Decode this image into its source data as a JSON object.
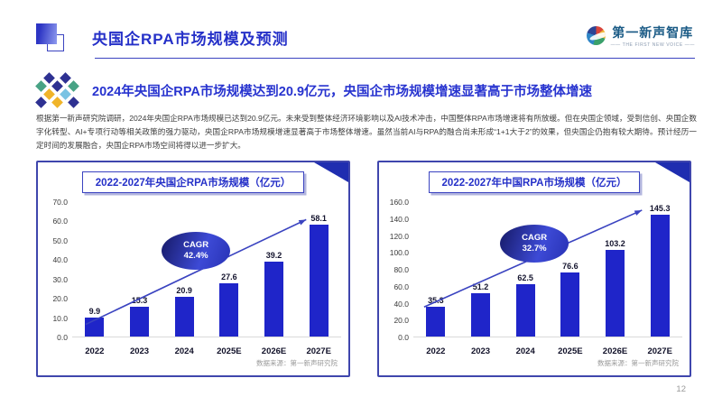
{
  "header": {
    "title": "央国企RPA市场规模及预测",
    "logo_text": "第一新声智库",
    "logo_tagline": "—— THE FIRST NEW VOICE ——"
  },
  "highlight": {
    "text": "2024年央国企RPA市场规模达到20.9亿元，央国企市场规模增速显著高于市场整体增速"
  },
  "body": {
    "paragraph": "根据第一新声研究院调研，2024年央国企RPA市场规模已达到20.9亿元。未来受到整体经济环境影响以及AI技术冲击，中国整体RPA市场增速将有所放缓。但在央国企领域，受到信创、央国企数字化转型、AI+专项行动等相关政策的强力驱动，央国企RPA市场规模增速显著高于市场整体增速。虽然当前AI与RPA的融合尚未形成“1+1大于2”的效果，但央国企仍抱有较大期待。预计经历一定时间的发展融合，央国企RPA市场空间将得以进一步扩大。"
  },
  "chart_data": [
    {
      "type": "bar",
      "title": "2022-2027年央国企RPA市场规模（亿元）",
      "categories": [
        "2022",
        "2023",
        "2024",
        "2025E",
        "2026E",
        "2027E"
      ],
      "values": [
        9.9,
        15.3,
        20.9,
        27.6,
        39.2,
        58.1
      ],
      "ylim": [
        0,
        70
      ],
      "ytick_step": 10,
      "grid": false,
      "legend": "none",
      "cagr_label": "CAGR",
      "cagr_value": "42.4%",
      "source": "数据来源：第一新声研究院",
      "bar_color": "#1f25c9"
    },
    {
      "type": "bar",
      "title": "2022-2027年中国RPA市场规模（亿元）",
      "categories": [
        "2022",
        "2023",
        "2024",
        "2025E",
        "2026E",
        "2027E"
      ],
      "values": [
        35.3,
        51.2,
        62.5,
        76.6,
        103.2,
        145.3
      ],
      "ylim": [
        0,
        160
      ],
      "ytick_step": 20,
      "grid": false,
      "legend": "none",
      "cagr_label": "CAGR",
      "cagr_value": "32.7%",
      "source": "数据来源：第一新声研究院",
      "bar_color": "#1f25c9"
    }
  ],
  "footer": {
    "page_number": "12"
  },
  "colors": {
    "accent_blue": "#2733cf",
    "bar_blue": "#1f25c9",
    "panel_border": "#3f46ad",
    "title_blue": "#2530c8",
    "arrow_blue": "#3a43c0"
  }
}
